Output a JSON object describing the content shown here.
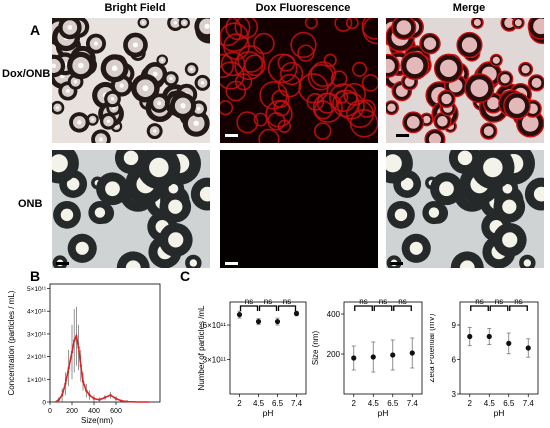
{
  "panel_a": {
    "letter": "A",
    "columns": [
      "Bright Field",
      "Dox Fluorescence",
      "Merge"
    ],
    "rows": [
      "Dox/ONB",
      "ONB"
    ]
  },
  "panel_b": {
    "letter": "B"
  },
  "panel_c": {
    "letter": "C"
  },
  "colors": {
    "fluorescence": "#cc1010",
    "fit_line": "#e32020",
    "brightfield": "#c8c2be"
  },
  "chart_data": [
    {
      "type": "line",
      "panel": "B",
      "xlabel": "Size(nm)",
      "ylabel": "Concentration (particles / mL)",
      "xticks": [
        0,
        200,
        400,
        600
      ],
      "yticks": [
        "0",
        "1×10¹¹",
        "2×10¹¹",
        "3×10¹¹",
        "4×10¹¹",
        "5×10¹¹"
      ],
      "ylim": [
        0,
        5.2
      ],
      "xlim": [
        0,
        1000
      ],
      "x": [
        50,
        80,
        110,
        140,
        170,
        200,
        220,
        240,
        260,
        280,
        300,
        330,
        360,
        400,
        450,
        500,
        550,
        600,
        650,
        700,
        800,
        900
      ],
      "y": [
        0,
        0.1,
        0.3,
        0.8,
        1.5,
        2.2,
        2.7,
        2.9,
        2.4,
        1.6,
        0.9,
        0.5,
        0.3,
        0.15,
        0.1,
        0.2,
        0.3,
        0.15,
        0.05,
        0.02,
        0,
        0
      ],
      "err": [
        0,
        0.1,
        0.3,
        0.5,
        0.8,
        1.2,
        1.4,
        1.3,
        1.0,
        0.7,
        0.4,
        0.3,
        0.2,
        0.15,
        0.1,
        0.1,
        0.15,
        0.1,
        0.05,
        0.02,
        0,
        0
      ]
    },
    {
      "type": "scatter",
      "panel": "C1",
      "xlabel": "pH",
      "ylabel": "Number of particles /mL",
      "categories": [
        "2",
        "4.5",
        "6.5",
        "7.4"
      ],
      "values": [
        6.9,
        6.3,
        6.3,
        7.0
      ],
      "errors": [
        0.3,
        0.25,
        0.3,
        0.2
      ],
      "ylim": [
        0,
        8
      ],
      "yticks": [
        3,
        6
      ],
      "ytick_labels": [
        "3×10¹¹",
        "6×10¹¹"
      ],
      "sig": [
        "ns",
        "ns",
        "ns"
      ]
    },
    {
      "type": "scatter",
      "panel": "C2",
      "xlabel": "pH",
      "ylabel": "Size (nm)",
      "categories": [
        "2",
        "4.5",
        "6.5",
        "7.4"
      ],
      "values": [
        180,
        185,
        195,
        205
      ],
      "errors": [
        60,
        75,
        75,
        75
      ],
      "ylim": [
        0,
        460
      ],
      "yticks": [
        200,
        400
      ],
      "ytick_labels": [
        "200",
        "400"
      ],
      "sig": [
        "ns",
        "ns",
        "ns"
      ]
    },
    {
      "type": "scatter",
      "panel": "C3",
      "xlabel": "pH",
      "ylabel": "Zeta Potential (mV)",
      "categories": [
        "2",
        "4.5",
        "6.5",
        "7.4"
      ],
      "values": [
        8.0,
        8.0,
        7.4,
        7.0
      ],
      "errors": [
        0.8,
        0.7,
        0.9,
        0.8
      ],
      "ylim": [
        3,
        11
      ],
      "yticks": [
        3,
        6,
        9
      ],
      "ytick_labels": [
        "3",
        "6",
        "9"
      ],
      "sig": [
        "ns",
        "ns",
        "ns"
      ]
    }
  ]
}
